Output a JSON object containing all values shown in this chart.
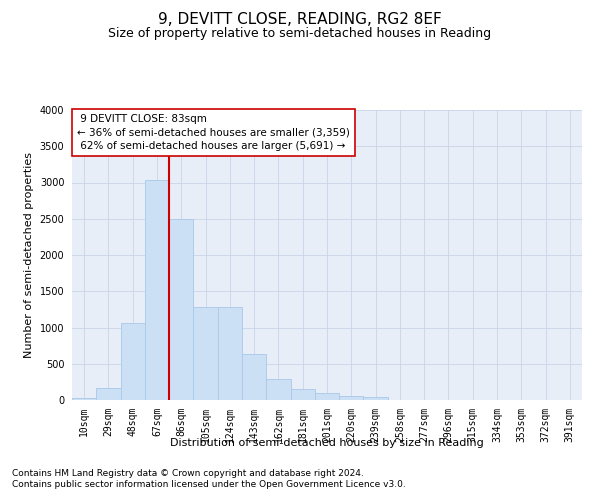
{
  "title": "9, DEVITT CLOSE, READING, RG2 8EF",
  "subtitle": "Size of property relative to semi-detached houses in Reading",
  "xlabel": "Distribution of semi-detached houses by size in Reading",
  "ylabel": "Number of semi-detached properties",
  "footnote1": "Contains HM Land Registry data © Crown copyright and database right 2024.",
  "footnote2": "Contains public sector information licensed under the Open Government Licence v3.0.",
  "bar_color": "#cce0f5",
  "bar_edge_color": "#aac8e8",
  "grid_color": "#c8d4e8",
  "background_color": "#e8eef8",
  "vline_color": "#cc0000",
  "categories": [
    "10sqm",
    "29sqm",
    "48sqm",
    "67sqm",
    "86sqm",
    "105sqm",
    "124sqm",
    "143sqm",
    "162sqm",
    "181sqm",
    "201sqm",
    "220sqm",
    "239sqm",
    "258sqm",
    "277sqm",
    "296sqm",
    "315sqm",
    "334sqm",
    "353sqm",
    "372sqm",
    "391sqm"
  ],
  "values": [
    30,
    160,
    1060,
    3030,
    2500,
    1280,
    1280,
    640,
    290,
    155,
    95,
    60,
    40,
    5,
    5,
    5,
    5,
    5,
    5,
    5,
    5
  ],
  "ylim": [
    0,
    4000
  ],
  "yticks": [
    0,
    500,
    1000,
    1500,
    2000,
    2500,
    3000,
    3500,
    4000
  ],
  "property_label": "9 DEVITT CLOSE: 83sqm",
  "pct_smaller": "36% of semi-detached houses are smaller (3,359)",
  "pct_larger": "62% of semi-detached houses are larger (5,691)",
  "vline_position": 3.5,
  "title_fontsize": 11,
  "subtitle_fontsize": 9,
  "axis_label_fontsize": 8,
  "tick_fontsize": 7,
  "annotation_fontsize": 7.5,
  "footnote_fontsize": 6.5
}
